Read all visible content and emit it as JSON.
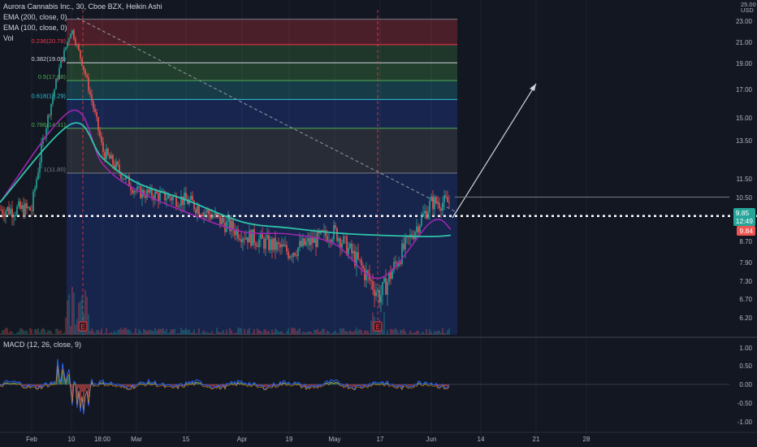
{
  "header": {
    "symbol_line": "Aurora Cannabis Inc., 30, Cboe BZX, Heikin Ashi",
    "indicators": [
      "EMA (200, close, 0)",
      "EMA (100, close, 0)",
      "Vol"
    ]
  },
  "price_axis": {
    "unit": "USD",
    "top_label": "25.00",
    "ticks": [
      "23.00",
      "21.00",
      "19.00",
      "17.00",
      "15.00",
      "13.50",
      "11.50",
      "10.50",
      "8.70",
      "7.90",
      "7.30",
      "6.70",
      "6.20"
    ]
  },
  "price_tags": {
    "last_price": "9.85",
    "countdown": "12:49",
    "alert_price": "9.84",
    "last_color": "#26a69a",
    "alert_color": "#ef5350"
  },
  "time_axis": {
    "labels": [
      "Feb",
      "10",
      "18:00",
      "Mar",
      "15",
      "Apr",
      "19",
      "May",
      "17",
      "Jun",
      "14",
      "21",
      "28"
    ]
  },
  "fib_levels": [
    {
      "label": "0.236(20.78)",
      "price": 20.78,
      "color": "#f23645"
    },
    {
      "label": "0.382(19.06)",
      "price": 19.06,
      "color": "#d1d4dc"
    },
    {
      "label": "0.5(17.68)",
      "price": 17.68,
      "color": "#4caf50"
    },
    {
      "label": "0.618(16.29)",
      "price": 16.29,
      "color": "#26c6da"
    },
    {
      "label": "0.786(14.31)",
      "price": 14.31,
      "color": "#4caf50"
    },
    {
      "label": "1(11.80)",
      "price": 11.8,
      "color": "#787b86"
    }
  ],
  "macd": {
    "label": "MACD (12, 26, close, 9)",
    "ticks": [
      "1.00",
      "0.50",
      "0.00",
      "-0.50",
      "-1.00"
    ]
  },
  "earnings_marker": "E",
  "colors": {
    "up": "#26a69a",
    "down": "#ef5350",
    "ema200": "#2ec4a9",
    "ema100": "#9c27b0",
    "background": "#131722"
  },
  "chart_data": {
    "type": "line",
    "title": "Aurora Cannabis Inc., 30, Cboe BZX, Heikin Ashi",
    "ylabel": "USD",
    "ylim": [
      6.0,
      25.0
    ],
    "x": [
      "Feb",
      "10",
      "18:00",
      "Mar",
      "15",
      "Apr",
      "19",
      "May",
      "17",
      "Jun"
    ],
    "series": [
      {
        "name": "EMA (200, close, 0)",
        "values": [
          10.3,
          14.6,
          12.6,
          11.3,
          10.4,
          9.5,
          9.25,
          9.05,
          8.95,
          8.9
        ]
      },
      {
        "name": "EMA (100, close, 0)",
        "values": [
          10.3,
          15.5,
          12.3,
          10.9,
          9.9,
          9.1,
          9.0,
          8.6,
          7.4,
          9.5
        ]
      }
    ],
    "price_path": [
      {
        "x": "Feb",
        "y": 10.0
      },
      {
        "x": "10",
        "y": 22.3
      },
      {
        "x": "18:00",
        "y": 13.0
      },
      {
        "x": "Mar",
        "y": 10.8
      },
      {
        "x": "15",
        "y": 10.4
      },
      {
        "x": "Apr",
        "y": 9.0
      },
      {
        "x": "19",
        "y": 8.3
      },
      {
        "x": "May",
        "y": 9.1
      },
      {
        "x": "17",
        "y": 6.8
      },
      {
        "x": "Jun",
        "y": 10.3
      }
    ],
    "last_price": 9.85,
    "alert_price": 9.84
  }
}
